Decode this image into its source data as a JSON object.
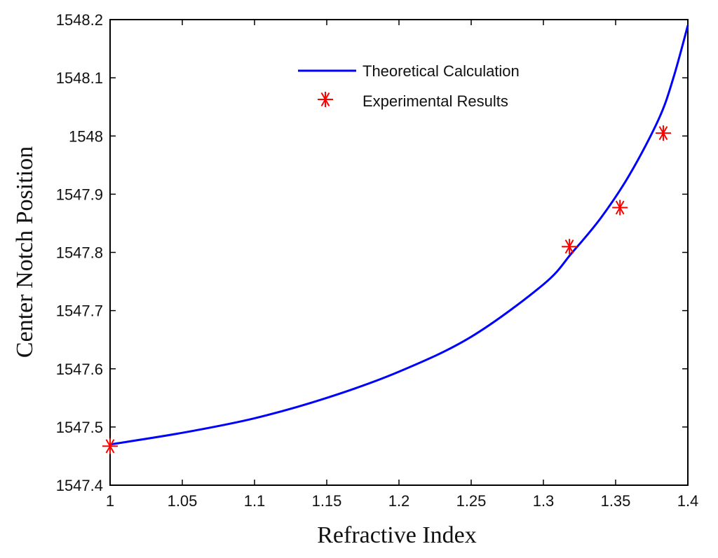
{
  "chart_data": {
    "type": "line",
    "title": "",
    "xlabel": "Refractive Index",
    "ylabel": "Center Notch Position",
    "xlim": [
      1,
      1.4
    ],
    "ylim": [
      1547.4,
      1548.2
    ],
    "xticks": [
      1,
      1.05,
      1.1,
      1.15,
      1.2,
      1.25,
      1.3,
      1.35,
      1.4
    ],
    "xtick_labels": [
      "1",
      "1.05",
      "1.1",
      "1.15",
      "1.2",
      "1.25",
      "1.3",
      "1.35",
      "1.4"
    ],
    "yticks": [
      1547.4,
      1547.5,
      1547.6,
      1547.7,
      1547.8,
      1547.9,
      1548,
      1548.1,
      1548.2
    ],
    "ytick_labels": [
      "1547.4",
      "1547.5",
      "1547.6",
      "1547.7",
      "1547.8",
      "1547.9",
      "1548",
      "1548.1",
      "1548.2"
    ],
    "grid": false,
    "legend_position": "top-center",
    "series": [
      {
        "name": "Theoretical Calculation",
        "kind": "line",
        "color": "#0000ff",
        "x": [
          1.0,
          1.05,
          1.1,
          1.15,
          1.2,
          1.25,
          1.3,
          1.32,
          1.34,
          1.36,
          1.38,
          1.39,
          1.4
        ],
        "y": [
          1547.47,
          1547.49,
          1547.515,
          1547.55,
          1547.595,
          1547.655,
          1547.745,
          1547.8,
          1547.86,
          1547.935,
          1548.03,
          1548.1,
          1548.19
        ]
      },
      {
        "name": "Experimental Results",
        "kind": "scatter",
        "marker": "asterisk",
        "color": "#ff0000",
        "x": [
          1.0,
          1.318,
          1.353,
          1.383
        ],
        "y": [
          1547.467,
          1547.81,
          1547.877,
          1548.005
        ]
      }
    ]
  }
}
